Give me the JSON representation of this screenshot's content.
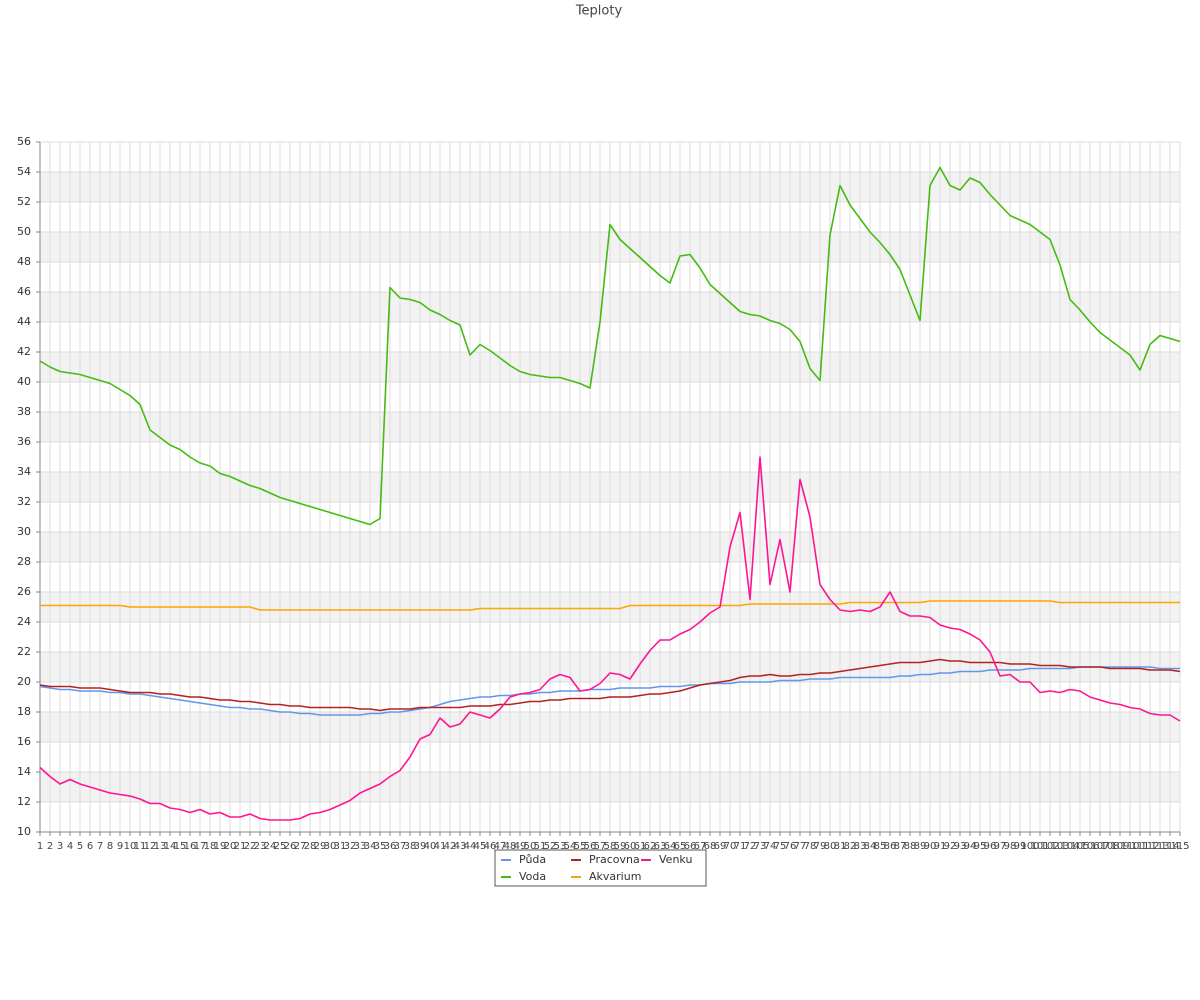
{
  "chart_data": {
    "type": "line",
    "title": "Teploty",
    "categories": [
      "1",
      "2",
      "3",
      "4",
      "5",
      "6",
      "7",
      "8",
      "9",
      "10",
      "11",
      "12",
      "13",
      "14",
      "15",
      "16",
      "17",
      "18",
      "19",
      "20",
      "21",
      "22",
      "23",
      "24",
      "25",
      "26",
      "27",
      "28",
      "29",
      "30",
      "31",
      "32",
      "33",
      "34",
      "35",
      "36",
      "37",
      "38",
      "39",
      "40",
      "41",
      "42",
      "43",
      "44",
      "45",
      "46",
      "47",
      "48",
      "49",
      "50",
      "51",
      "52",
      "53",
      "54",
      "55",
      "56",
      "57",
      "58",
      "59",
      "60",
      "61",
      "62",
      "63",
      "64",
      "65",
      "66",
      "67",
      "68",
      "69",
      "70",
      "71",
      "72",
      "73",
      "74",
      "75",
      "76",
      "77",
      "78",
      "79",
      "80",
      "81",
      "82",
      "83",
      "84",
      "85",
      "86",
      "87",
      "88",
      "89",
      "90",
      "91",
      "92",
      "93",
      "94",
      "95",
      "96",
      "97",
      "98",
      "99",
      "100",
      "101",
      "102",
      "103",
      "104",
      "105",
      "106",
      "107",
      "108",
      "109",
      "110",
      "111",
      "112",
      "113",
      "114",
      "115"
    ],
    "ylim": [
      10,
      56
    ],
    "yticks": [
      10,
      12,
      14,
      16,
      18,
      20,
      22,
      24,
      26,
      28,
      30,
      32,
      34,
      36,
      38,
      40,
      42,
      44,
      46,
      48,
      50,
      52,
      54,
      56
    ],
    "grid": true,
    "series": [
      {
        "name": "Půda",
        "color": "#6495ed",
        "values": [
          19.7,
          19.6,
          19.5,
          19.5,
          19.4,
          19.4,
          19.4,
          19.3,
          19.3,
          19.2,
          19.2,
          19.1,
          19.0,
          18.9,
          18.8,
          18.7,
          18.6,
          18.5,
          18.4,
          18.3,
          18.3,
          18.2,
          18.2,
          18.1,
          18.0,
          18.0,
          17.9,
          17.9,
          17.8,
          17.8,
          17.8,
          17.8,
          17.8,
          17.9,
          17.9,
          18.0,
          18.0,
          18.1,
          18.2,
          18.3,
          18.5,
          18.7,
          18.8,
          18.9,
          19.0,
          19.0,
          19.1,
          19.1,
          19.2,
          19.2,
          19.3,
          19.3,
          19.4,
          19.4,
          19.4,
          19.5,
          19.5,
          19.5,
          19.6,
          19.6,
          19.6,
          19.6,
          19.7,
          19.7,
          19.7,
          19.8,
          19.8,
          19.9,
          19.9,
          19.9,
          20.0,
          20.0,
          20.0,
          20.0,
          20.1,
          20.1,
          20.1,
          20.2,
          20.2,
          20.2,
          20.3,
          20.3,
          20.3,
          20.3,
          20.3,
          20.3,
          20.4,
          20.4,
          20.5,
          20.5,
          20.6,
          20.6,
          20.7,
          20.7,
          20.7,
          20.8,
          20.8,
          20.8,
          20.8,
          20.9,
          20.9,
          20.9,
          20.9,
          20.9,
          21.0,
          21.0,
          21.0,
          21.0,
          21.0,
          21.0,
          21.0,
          21.0,
          20.9,
          20.9,
          20.9
        ]
      },
      {
        "name": "Voda",
        "color": "#44bb11",
        "values": [
          41.4,
          41.0,
          40.7,
          40.6,
          40.5,
          40.3,
          40.1,
          39.9,
          39.5,
          39.1,
          38.5,
          36.8,
          36.3,
          35.8,
          35.5,
          35.0,
          34.6,
          34.4,
          33.9,
          33.7,
          33.4,
          33.1,
          32.9,
          32.6,
          32.3,
          32.1,
          31.9,
          31.7,
          31.5,
          31.3,
          31.1,
          30.9,
          30.7,
          30.5,
          30.9,
          46.3,
          45.6,
          45.5,
          45.3,
          44.8,
          44.5,
          44.1,
          43.8,
          41.8,
          42.5,
          42.1,
          41.6,
          41.1,
          40.7,
          40.5,
          40.4,
          40.3,
          40.3,
          40.1,
          39.9,
          39.6,
          44.0,
          50.5,
          49.5,
          48.9,
          48.3,
          47.7,
          47.1,
          46.6,
          48.4,
          48.5,
          47.6,
          46.5,
          45.9,
          45.3,
          44.7,
          44.5,
          44.4,
          44.1,
          43.9,
          43.5,
          42.7,
          40.9,
          40.1,
          49.8,
          53.1,
          51.8,
          50.9,
          50.0,
          49.3,
          48.5,
          47.5,
          45.8,
          44.1,
          53.1,
          54.3,
          53.1,
          52.8,
          53.6,
          53.3,
          52.5,
          51.8,
          51.1,
          50.8,
          50.5,
          50.0,
          49.5,
          47.8,
          45.5,
          44.8,
          44.0,
          43.3,
          42.8,
          42.3,
          41.8,
          40.8,
          42.5,
          43.1,
          42.9,
          42.7
        ]
      },
      {
        "name": "Pracovna",
        "color": "#b22222",
        "values": [
          19.8,
          19.7,
          19.7,
          19.7,
          19.6,
          19.6,
          19.6,
          19.5,
          19.4,
          19.3,
          19.3,
          19.3,
          19.2,
          19.2,
          19.1,
          19.0,
          19.0,
          18.9,
          18.8,
          18.8,
          18.7,
          18.7,
          18.6,
          18.5,
          18.5,
          18.4,
          18.4,
          18.3,
          18.3,
          18.3,
          18.3,
          18.3,
          18.2,
          18.2,
          18.1,
          18.2,
          18.2,
          18.2,
          18.3,
          18.3,
          18.3,
          18.3,
          18.3,
          18.4,
          18.4,
          18.4,
          18.5,
          18.5,
          18.6,
          18.7,
          18.7,
          18.8,
          18.8,
          18.9,
          18.9,
          18.9,
          18.9,
          19.0,
          19.0,
          19.0,
          19.1,
          19.2,
          19.2,
          19.3,
          19.4,
          19.6,
          19.8,
          19.9,
          20.0,
          20.1,
          20.3,
          20.4,
          20.4,
          20.5,
          20.4,
          20.4,
          20.5,
          20.5,
          20.6,
          20.6,
          20.7,
          20.8,
          20.9,
          21.0,
          21.1,
          21.2,
          21.3,
          21.3,
          21.3,
          21.4,
          21.5,
          21.4,
          21.4,
          21.3,
          21.3,
          21.3,
          21.3,
          21.2,
          21.2,
          21.2,
          21.1,
          21.1,
          21.1,
          21.0,
          21.0,
          21.0,
          21.0,
          20.9,
          20.9,
          20.9,
          20.9,
          20.8,
          20.8,
          20.8,
          20.7
        ]
      },
      {
        "name": "Akvarium",
        "color": "#ffa500",
        "values": [
          25.1,
          25.1,
          25.1,
          25.1,
          25.1,
          25.1,
          25.1,
          25.1,
          25.1,
          25.0,
          25.0,
          25.0,
          25.0,
          25.0,
          25.0,
          25.0,
          25.0,
          25.0,
          25.0,
          25.0,
          25.0,
          25.0,
          24.8,
          24.8,
          24.8,
          24.8,
          24.8,
          24.8,
          24.8,
          24.8,
          24.8,
          24.8,
          24.8,
          24.8,
          24.8,
          24.8,
          24.8,
          24.8,
          24.8,
          24.8,
          24.8,
          24.8,
          24.8,
          24.8,
          24.9,
          24.9,
          24.9,
          24.9,
          24.9,
          24.9,
          24.9,
          24.9,
          24.9,
          24.9,
          24.9,
          24.9,
          24.9,
          24.9,
          24.9,
          25.1,
          25.1,
          25.1,
          25.1,
          25.1,
          25.1,
          25.1,
          25.1,
          25.1,
          25.1,
          25.1,
          25.1,
          25.2,
          25.2,
          25.2,
          25.2,
          25.2,
          25.2,
          25.2,
          25.2,
          25.2,
          25.2,
          25.3,
          25.3,
          25.3,
          25.3,
          25.3,
          25.3,
          25.3,
          25.3,
          25.4,
          25.4,
          25.4,
          25.4,
          25.4,
          25.4,
          25.4,
          25.4,
          25.4,
          25.4,
          25.4,
          25.4,
          25.4,
          25.3,
          25.3,
          25.3,
          25.3,
          25.3,
          25.3,
          25.3,
          25.3,
          25.3,
          25.3,
          25.3,
          25.3,
          25.3
        ]
      },
      {
        "name": "Venku",
        "color": "#ff1493",
        "values": [
          14.3,
          13.7,
          13.2,
          13.5,
          13.2,
          13.0,
          12.8,
          12.6,
          12.5,
          12.4,
          12.2,
          11.9,
          11.9,
          11.6,
          11.5,
          11.3,
          11.5,
          11.2,
          11.3,
          11.0,
          11.0,
          11.2,
          10.9,
          10.8,
          10.8,
          10.8,
          10.9,
          11.2,
          11.3,
          11.5,
          11.8,
          12.1,
          12.6,
          12.9,
          13.2,
          13.7,
          14.1,
          15.0,
          16.2,
          16.5,
          17.6,
          17.0,
          17.2,
          18.0,
          17.8,
          17.6,
          18.2,
          19.0,
          19.2,
          19.3,
          19.5,
          20.2,
          20.5,
          20.3,
          19.4,
          19.5,
          19.9,
          20.6,
          20.5,
          20.2,
          21.2,
          22.1,
          22.8,
          22.8,
          23.2,
          23.5,
          24.0,
          24.6,
          25.0,
          29.0,
          31.3,
          25.5,
          35.0,
          26.5,
          29.5,
          26.0,
          33.5,
          31.0,
          26.5,
          25.5,
          24.8,
          24.7,
          24.8,
          24.7,
          25.0,
          26.0,
          24.7,
          24.4,
          24.4,
          24.3,
          23.8,
          23.6,
          23.5,
          23.2,
          22.8,
          22.0,
          20.4,
          20.5,
          20.0,
          20.0,
          19.3,
          19.4,
          19.3,
          19.5,
          19.4,
          19.0,
          18.8,
          18.6,
          18.5,
          18.3,
          18.2,
          17.9,
          17.8,
          17.8,
          17.4
        ]
      }
    ]
  }
}
